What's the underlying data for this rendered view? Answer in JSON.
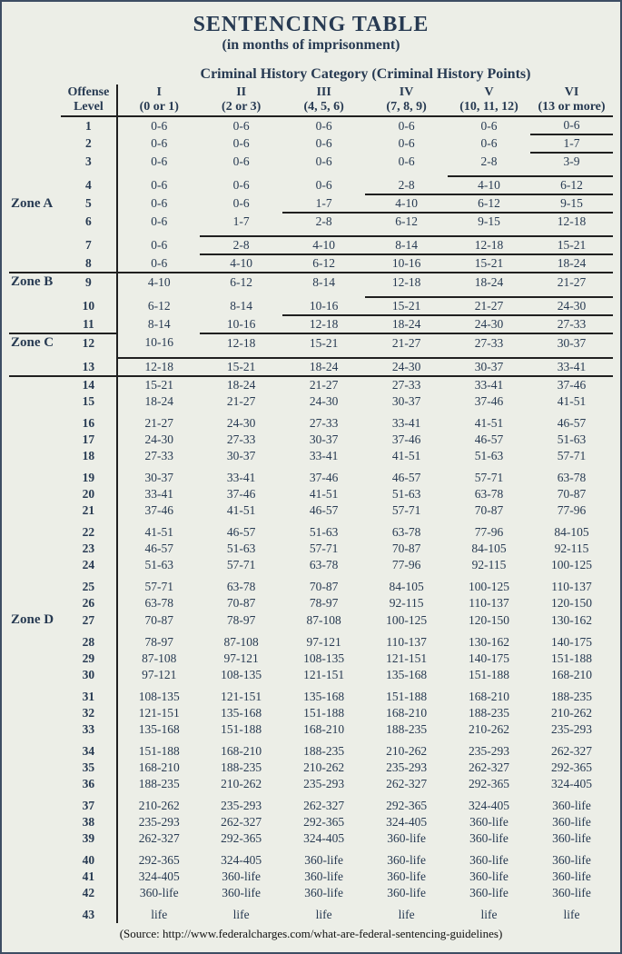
{
  "title": "SENTENCING TABLE",
  "subtitle": "(in months of imprisonment)",
  "super_header": "Criminal History Category  (Criminal History Points)",
  "source": "(Source: http://www.federalcharges.com/what-are-federal-sentencing-guidelines)",
  "zone_col_header": "",
  "offense_label_1": "Offense",
  "offense_label_2": "Level",
  "categories": [
    {
      "roman": "I",
      "points": "(0 or 1)"
    },
    {
      "roman": "II",
      "points": "(2 or 3)"
    },
    {
      "roman": "III",
      "points": "(4, 5, 6)"
    },
    {
      "roman": "IV",
      "points": "(7, 8, 9)"
    },
    {
      "roman": "V",
      "points": "(10, 11, 12)"
    },
    {
      "roman": "VI",
      "points": "(13 or more)"
    }
  ],
  "zones": {
    "A": "Zone A",
    "B": "Zone B",
    "C": "Zone C",
    "D": "Zone D"
  },
  "rows": {
    "1": [
      "0-6",
      "0-6",
      "0-6",
      "0-6",
      "0-6",
      "0-6"
    ],
    "2": [
      "0-6",
      "0-6",
      "0-6",
      "0-6",
      "0-6",
      "1-7"
    ],
    "3": [
      "0-6",
      "0-6",
      "0-6",
      "0-6",
      "2-8",
      "3-9"
    ],
    "4": [
      "0-6",
      "0-6",
      "0-6",
      "2-8",
      "4-10",
      "6-12"
    ],
    "5": [
      "0-6",
      "0-6",
      "1-7",
      "4-10",
      "6-12",
      "9-15"
    ],
    "6": [
      "0-6",
      "1-7",
      "2-8",
      "6-12",
      "9-15",
      "12-18"
    ],
    "7": [
      "0-6",
      "2-8",
      "4-10",
      "8-14",
      "12-18",
      "15-21"
    ],
    "8": [
      "0-6",
      "4-10",
      "6-12",
      "10-16",
      "15-21",
      "18-24"
    ],
    "9": [
      "4-10",
      "6-12",
      "8-14",
      "12-18",
      "18-24",
      "21-27"
    ],
    "10": [
      "6-12",
      "8-14",
      "10-16",
      "15-21",
      "21-27",
      "24-30"
    ],
    "11": [
      "8-14",
      "10-16",
      "12-18",
      "18-24",
      "24-30",
      "27-33"
    ],
    "12": [
      "10-16",
      "12-18",
      "15-21",
      "21-27",
      "27-33",
      "30-37"
    ],
    "13": [
      "12-18",
      "15-21",
      "18-24",
      "24-30",
      "30-37",
      "33-41"
    ],
    "14": [
      "15-21",
      "18-24",
      "21-27",
      "27-33",
      "33-41",
      "37-46"
    ],
    "15": [
      "18-24",
      "21-27",
      "24-30",
      "30-37",
      "37-46",
      "41-51"
    ],
    "16": [
      "21-27",
      "24-30",
      "27-33",
      "33-41",
      "41-51",
      "46-57"
    ],
    "17": [
      "24-30",
      "27-33",
      "30-37",
      "37-46",
      "46-57",
      "51-63"
    ],
    "18": [
      "27-33",
      "30-37",
      "33-41",
      "41-51",
      "51-63",
      "57-71"
    ],
    "19": [
      "30-37",
      "33-41",
      "37-46",
      "46-57",
      "57-71",
      "63-78"
    ],
    "20": [
      "33-41",
      "37-46",
      "41-51",
      "51-63",
      "63-78",
      "70-87"
    ],
    "21": [
      "37-46",
      "41-51",
      "46-57",
      "57-71",
      "70-87",
      "77-96"
    ],
    "22": [
      "41-51",
      "46-57",
      "51-63",
      "63-78",
      "77-96",
      "84-105"
    ],
    "23": [
      "46-57",
      "51-63",
      "57-71",
      "70-87",
      "84-105",
      "92-115"
    ],
    "24": [
      "51-63",
      "57-71",
      "63-78",
      "77-96",
      "92-115",
      "100-125"
    ],
    "25": [
      "57-71",
      "63-78",
      "70-87",
      "84-105",
      "100-125",
      "110-137"
    ],
    "26": [
      "63-78",
      "70-87",
      "78-97",
      "92-115",
      "110-137",
      "120-150"
    ],
    "27": [
      "70-87",
      "78-97",
      "87-108",
      "100-125",
      "120-150",
      "130-162"
    ],
    "28": [
      "78-97",
      "87-108",
      "97-121",
      "110-137",
      "130-162",
      "140-175"
    ],
    "29": [
      "87-108",
      "97-121",
      "108-135",
      "121-151",
      "140-175",
      "151-188"
    ],
    "30": [
      "97-121",
      "108-135",
      "121-151",
      "135-168",
      "151-188",
      "168-210"
    ],
    "31": [
      "108-135",
      "121-151",
      "135-168",
      "151-188",
      "168-210",
      "188-235"
    ],
    "32": [
      "121-151",
      "135-168",
      "151-188",
      "168-210",
      "188-235",
      "210-262"
    ],
    "33": [
      "135-168",
      "151-188",
      "168-210",
      "188-235",
      "210-262",
      "235-293"
    ],
    "34": [
      "151-188",
      "168-210",
      "188-235",
      "210-262",
      "235-293",
      "262-327"
    ],
    "35": [
      "168-210",
      "188-235",
      "210-262",
      "235-293",
      "262-327",
      "292-365"
    ],
    "36": [
      "188-235",
      "210-262",
      "235-293",
      "262-327",
      "292-365",
      "324-405"
    ],
    "37": [
      "210-262",
      "235-293",
      "262-327",
      "292-365",
      "324-405",
      "360-life"
    ],
    "38": [
      "235-293",
      "262-327",
      "292-365",
      "324-405",
      "360-life",
      "360-life"
    ],
    "39": [
      "262-327",
      "292-365",
      "324-405",
      "360-life",
      "360-life",
      "360-life"
    ],
    "40": [
      "292-365",
      "324-405",
      "360-life",
      "360-life",
      "360-life",
      "360-life"
    ],
    "41": [
      "324-405",
      "360-life",
      "360-life",
      "360-life",
      "360-life",
      "360-life"
    ],
    "42": [
      "360-life",
      "360-life",
      "360-life",
      "360-life",
      "360-life",
      "360-life"
    ],
    "43": [
      "life",
      "life",
      "life",
      "life",
      "life",
      "life"
    ]
  },
  "zone_line_cols": {
    "1": 5,
    "2": 5,
    "3": 4,
    "4": 3,
    "5": 2,
    "6": 1,
    "7": 1,
    "8": 0,
    "9": 3,
    "10": 2,
    "11": 1,
    "12": 0
  },
  "zone_line_A_start": 6,
  "zone_line_B_end": 4,
  "zone_line_C_end": 2
}
